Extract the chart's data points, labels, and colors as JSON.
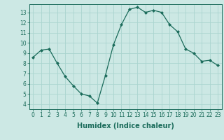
{
  "x": [
    0,
    1,
    2,
    3,
    4,
    5,
    6,
    7,
    8,
    9,
    10,
    11,
    12,
    13,
    14,
    15,
    16,
    17,
    18,
    19,
    20,
    21,
    22,
    23
  ],
  "y": [
    8.6,
    9.3,
    9.4,
    8.0,
    6.7,
    5.8,
    5.0,
    4.8,
    4.1,
    6.8,
    9.8,
    11.8,
    13.3,
    13.5,
    13.0,
    13.2,
    13.0,
    11.8,
    11.1,
    9.4,
    9.0,
    8.2,
    8.3,
    7.8
  ],
  "line_color": "#1a6b5a",
  "marker": "D",
  "marker_size": 2,
  "bg_color": "#cce8e4",
  "grid_color": "#aad4cf",
  "xlabel": "Humidex (Indice chaleur)",
  "ylim": [
    3.5,
    13.8
  ],
  "xlim": [
    -0.5,
    23.5
  ],
  "yticks": [
    4,
    5,
    6,
    7,
    8,
    9,
    10,
    11,
    12,
    13
  ],
  "xticks": [
    0,
    1,
    2,
    3,
    4,
    5,
    6,
    7,
    8,
    9,
    10,
    11,
    12,
    13,
    14,
    15,
    16,
    17,
    18,
    19,
    20,
    21,
    22,
    23
  ],
  "tick_label_fontsize": 5.5,
  "xlabel_fontsize": 7,
  "label_color": "#1a6b5a",
  "linewidth": 0.9
}
